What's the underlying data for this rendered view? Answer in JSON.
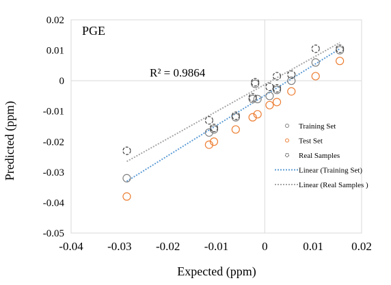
{
  "chart_data": {
    "type": "scatter",
    "title": "PGE",
    "xlabel": "Expected (ppm)",
    "ylabel": "Predicted (ppm)",
    "xlim": [
      -0.04,
      0.02
    ],
    "ylim": [
      -0.05,
      0.02
    ],
    "x_ticks": [
      -0.04,
      -0.03,
      -0.02,
      -0.01,
      0,
      0.01,
      0.02
    ],
    "y_ticks": [
      -0.05,
      -0.04,
      -0.03,
      -0.02,
      -0.01,
      0,
      0.01,
      0.02
    ],
    "x_tick_labels": [
      "-0.04",
      "-0.03",
      "-0.02",
      "-0.01",
      "0",
      "0.01",
      "0.02"
    ],
    "y_tick_labels": [
      "-0.05",
      "-0.04",
      "-0.03",
      "-0.02",
      "-0.01",
      "0",
      "0.01",
      "0.02"
    ],
    "grid": false,
    "legend_position": "right",
    "annotations": [
      {
        "text": "R² = 0.9864",
        "x": -0.024,
        "y": 0.001
      }
    ],
    "series": [
      {
        "name": "Training Set",
        "kind": "points",
        "color": "#7f7f7f",
        "marker": "open-circle",
        "points": [
          [
            -0.0285,
            -0.032
          ],
          [
            -0.0115,
            -0.017
          ],
          [
            -0.0105,
            -0.016
          ],
          [
            -0.006,
            -0.012
          ],
          [
            -0.0025,
            -0.006
          ],
          [
            -0.002,
            -0.001
          ],
          [
            -0.0015,
            -0.006
          ],
          [
            0.001,
            -0.005
          ],
          [
            0.0025,
            -0.003
          ],
          [
            0.0055,
            0.0
          ],
          [
            0.0105,
            0.006
          ],
          [
            0.0155,
            0.01
          ]
        ]
      },
      {
        "name": "Test Set",
        "kind": "points",
        "color": "#ed7d31",
        "marker": "open-circle",
        "points": [
          [
            -0.0285,
            -0.038
          ],
          [
            -0.0115,
            -0.021
          ],
          [
            -0.0105,
            -0.02
          ],
          [
            -0.006,
            -0.016
          ],
          [
            -0.0025,
            -0.012
          ],
          [
            -0.0015,
            -0.011
          ],
          [
            0.001,
            -0.008
          ],
          [
            0.0025,
            -0.007
          ],
          [
            0.0055,
            -0.0035
          ],
          [
            0.0105,
            0.0015
          ],
          [
            0.0155,
            0.0065
          ]
        ]
      },
      {
        "name": "Real Samples",
        "kind": "points",
        "color": "#404040",
        "marker": "open-circle-dashed",
        "points": [
          [
            -0.0285,
            -0.023
          ],
          [
            -0.0115,
            -0.013
          ],
          [
            -0.0105,
            -0.0155
          ],
          [
            -0.006,
            -0.0115
          ],
          [
            -0.0025,
            -0.0055
          ],
          [
            -0.002,
            -0.0005
          ],
          [
            0.001,
            -0.002
          ],
          [
            0.0025,
            0.0015
          ],
          [
            0.0025,
            -0.0025
          ],
          [
            0.0055,
            0.002
          ],
          [
            0.0105,
            0.0105
          ],
          [
            0.0155,
            0.0105
          ]
        ]
      },
      {
        "name": "Linear (Training Set)",
        "kind": "trendline",
        "color": "#5b9bd5",
        "dash": "dotted",
        "x": [
          -0.0285,
          0.0155
        ],
        "y": [
          -0.033,
          0.0105
        ]
      },
      {
        "name": "Linear (Real Samples )",
        "kind": "trendline",
        "color": "#a5a5a5",
        "dash": "dotted",
        "x": [
          -0.0285,
          0.0155
        ],
        "y": [
          -0.0265,
          0.0125
        ]
      }
    ]
  }
}
